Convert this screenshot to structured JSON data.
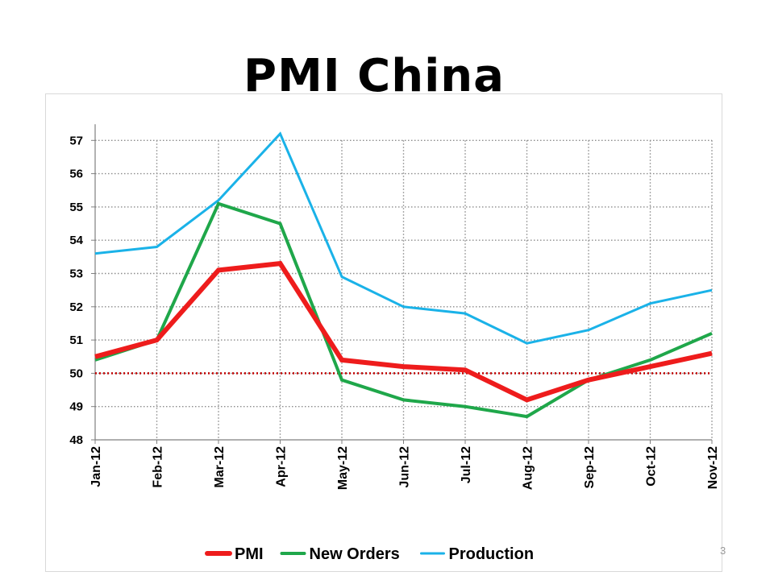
{
  "slide": {
    "title": "PMI China",
    "page_number": "3"
  },
  "chart_data": {
    "type": "line",
    "title": "",
    "xlabel": "",
    "ylabel": "",
    "categories": [
      "Jan-12",
      "Feb-12",
      "Mar-12",
      "Apr-12",
      "May-12",
      "Jun-12",
      "Jul-12",
      "Aug-12",
      "Sep-12",
      "Oct-12",
      "Nov-12"
    ],
    "ylim": [
      48,
      57
    ],
    "yticks": [
      48,
      49,
      50,
      51,
      52,
      53,
      54,
      55,
      56,
      57
    ],
    "reference_line": {
      "value": 50,
      "color": "#c00000",
      "style": "dotted"
    },
    "grid": true,
    "legend_position": "bottom",
    "series": [
      {
        "name": "PMI",
        "color": "#ee1c1c",
        "values": [
          50.5,
          51.0,
          53.1,
          53.3,
          50.4,
          50.2,
          50.1,
          49.2,
          49.8,
          50.2,
          50.6
        ]
      },
      {
        "name": "New Orders",
        "color": "#1fa74a",
        "values": [
          50.4,
          51.0,
          55.1,
          54.5,
          49.8,
          49.2,
          49.0,
          48.7,
          49.8,
          50.4,
          51.2
        ]
      },
      {
        "name": "Production",
        "color": "#1ab2e8",
        "values": [
          53.6,
          53.8,
          55.2,
          57.2,
          52.9,
          52.0,
          51.8,
          50.9,
          51.3,
          52.1,
          52.5
        ]
      }
    ]
  }
}
